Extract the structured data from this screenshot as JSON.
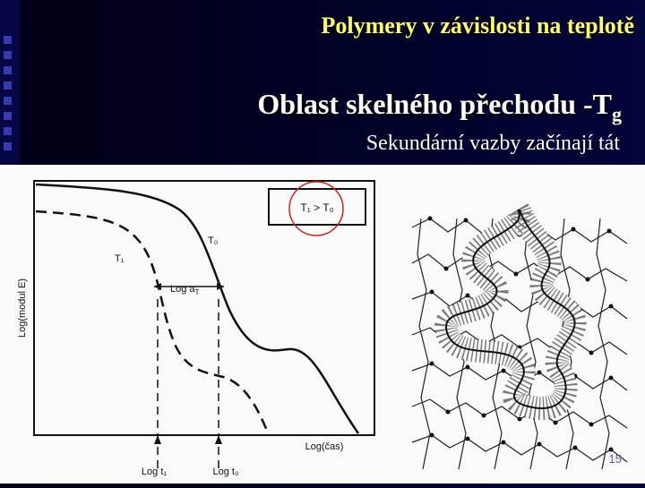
{
  "slide": {
    "title": "Polymery v závislosti na teplotě",
    "subtitle_main": "Oblast skelného přechodu -T",
    "subtitle_sub": "g",
    "bullet": "Sekundární vazby začínají tát",
    "page_number": "15"
  },
  "graph": {
    "legend": "T₁ > T₀",
    "curve_t1": "T₁",
    "curve_t0": "T₀",
    "shift_label": "Log a",
    "shift_sub": "T",
    "ylabel": "Log(modul E)",
    "xlabel": "Log(čas)",
    "tick_t1": "Log t₁",
    "tick_t0": "Log t₀"
  },
  "colors": {
    "title": "#ffff66",
    "text": "#ffffff",
    "background": "#000020",
    "highlight_circle": "#cc2222"
  }
}
